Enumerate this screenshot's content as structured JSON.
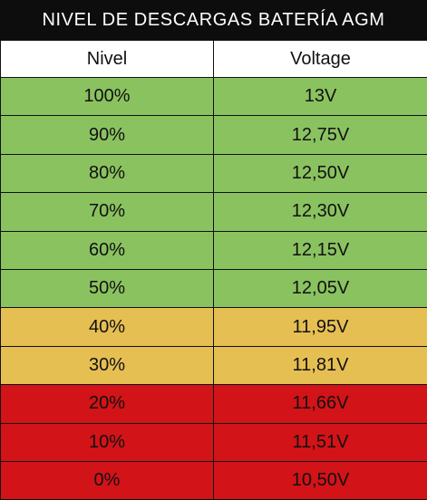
{
  "title": "NIVEL DE DESCARGAS BATERÍA AGM",
  "headers": {
    "level": "Nivel",
    "voltage": "Voltage"
  },
  "rows": [
    {
      "level": "100%",
      "voltage": "13V",
      "status": "green"
    },
    {
      "level": "90%",
      "voltage": "12,75V",
      "status": "green"
    },
    {
      "level": "80%",
      "voltage": "12,50V",
      "status": "green"
    },
    {
      "level": "70%",
      "voltage": "12,30V",
      "status": "green"
    },
    {
      "level": "60%",
      "voltage": "12,15V",
      "status": "green"
    },
    {
      "level": "50%",
      "voltage": "12,05V",
      "status": "green"
    },
    {
      "level": "40%",
      "voltage": "11,95V",
      "status": "yellow"
    },
    {
      "level": "30%",
      "voltage": "11,81V",
      "status": "yellow"
    },
    {
      "level": "20%",
      "voltage": "11,66V",
      "status": "red"
    },
    {
      "level": "10%",
      "voltage": "11,51V",
      "status": "red"
    },
    {
      "level": "0%",
      "voltage": "10,50V",
      "status": "red"
    }
  ],
  "colors": {
    "green": "#8ac260",
    "yellow": "#e6bf53",
    "red": "#d21317",
    "header_bg": "#0d0d0d"
  }
}
